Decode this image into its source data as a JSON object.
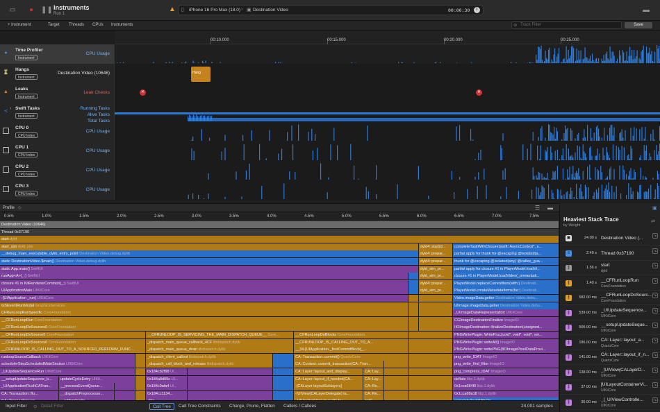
{
  "titlebar": {
    "app_title": "Instruments",
    "run_label": "Run 1",
    "device": "iPhone 16 Pro Max (18.0)",
    "target": "Destination Video",
    "time": "00:00:30",
    "sep": "›"
  },
  "toolbar": {
    "add_instrument": "+ Instrument",
    "target": "Target",
    "threads": "Threads",
    "cpus": "CPUs",
    "instruments": "Instruments",
    "track_filter_placeholder": "Track Filter",
    "save": "Save"
  },
  "ruler": [
    "00:10.000",
    "00:15.000",
    "00:20.000",
    "00:25.000"
  ],
  "tracks": [
    {
      "name": "Time Profiler",
      "badge": "Instrument",
      "sub": "CPU Usage",
      "icon": "time-profiler-icon",
      "glyph": "●",
      "color": "#4a90e2"
    },
    {
      "name": "Hangs",
      "badge": "Instrument",
      "sub": "Destination Video (10646)",
      "icon": "hangs-icon",
      "glyph": "⏳",
      "color": "#4a90e2",
      "hang_label": "Hang"
    },
    {
      "name": "Leaks",
      "badge": "Instrument",
      "sub": "Leak Checks",
      "icon": "leaks-icon",
      "glyph": "▲",
      "color": "#e08a2c"
    },
    {
      "name": "Swift Tasks",
      "badge": "Instrument",
      "sub_lines": [
        "Running Tasks",
        "Alive Tasks",
        "Total Tasks"
      ],
      "icon": "swift-tasks-icon",
      "glyph": "≺",
      "color": "#4a90e2"
    },
    {
      "name": "CPU 0",
      "badge": "CPU Index",
      "sub": "CPU Usage",
      "icon": "cpu-checkbox-icon"
    },
    {
      "name": "CPU 1",
      "badge": "CPU Index",
      "sub": "CPU Usage",
      "icon": "cpu-checkbox-icon"
    },
    {
      "name": "CPU 2",
      "badge": "CPU Index",
      "sub": "CPU Usage",
      "icon": "cpu-checkbox-icon"
    },
    {
      "name": "CPU 3",
      "badge": "CPU Index",
      "sub": "CPU Usage",
      "icon": "cpu-checkbox-icon"
    }
  ],
  "profile": {
    "title": "Profile",
    "percent_ticks": [
      "0.5%",
      "1.0%",
      "1.5%",
      "2.0%",
      "2.5%",
      "3.0%",
      "3.5%",
      "4.0%",
      "4.5%",
      "5.0%",
      "5.5%",
      "6.0%",
      "6.5%",
      "7.0%",
      "7.5%"
    ]
  },
  "flame_rows": [
    [
      {
        "t": "Destination Video (10646)",
        "lib": "",
        "w": 805,
        "c": "gray"
      }
    ],
    [
      {
        "t": "Thread  0x37190",
        "lib": "",
        "w": 805,
        "c": "dark"
      }
    ],
    [
      {
        "t": "start",
        "lib": "dyld",
        "w": 805,
        "c": "gold"
      }
    ],
    [
      {
        "t": "start_sim",
        "lib": "dyld_sim",
        "w": 603,
        "c": "gold"
      },
      {
        "t": "dyld4::start(d...",
        "lib": "",
        "w": 49,
        "c": "gold"
      },
      {
        "t": "completeTaskWithClosure(swift::AsyncContext*, s...",
        "lib": "",
        "w": 153,
        "c": "blue"
      }
    ],
    [
      {
        "t": "__debug_main_executable_dylib_entry_point",
        "lib": "Destination Video.debug.dylib",
        "w": 603,
        "c": "blue"
      },
      {
        "t": "dyld4::prepar...",
        "lib": "",
        "w": 49,
        "c": "gold"
      },
      {
        "t": "partial apply for thunk for @escaping @isolated(a...",
        "lib": "",
        "w": 153,
        "c": "blue"
      }
    ],
    [
      {
        "t": "static DestinationVideo.$main()",
        "lib": "Destination Video.debug.dylib",
        "w": 603,
        "c": "blue"
      },
      {
        "t": "dyld4::prepar...",
        "lib": "",
        "w": 49,
        "c": "gold"
      },
      {
        "t": "thunk for @escaping @isolated(any) @callee_gua...",
        "lib": "",
        "w": 153,
        "c": "blue"
      }
    ],
    [
      {
        "t": "static App.main()",
        "lib": "SwiftUI",
        "w": 603,
        "c": "purple"
      },
      {
        "t": "dyld_sim_pr...",
        "lib": "",
        "w": 49,
        "c": "gold"
      },
      {
        "t": "partial apply for closure #1 in PlayerModel.loadVi...",
        "lib": "",
        "w": 153,
        "c": "blue"
      }
    ],
    [
      {
        "t": "runApp<A>(_:)",
        "lib": "SwiftUI",
        "w": 588,
        "c": "purple"
      },
      {
        "t": "",
        "lib": "",
        "w": 15,
        "c": "blue"
      },
      {
        "t": "dyld_sim_pr...",
        "lib": "",
        "w": 49,
        "c": "gold"
      },
      {
        "t": "closure #1 in PlayerModel.loadVideo(_presentati...",
        "lib": "",
        "w": 153,
        "c": "blue"
      }
    ],
    [
      {
        "t": "closure #1 in KitRendererCommon(_:)",
        "lib": "SwiftUI",
        "w": 588,
        "c": "purple"
      },
      {
        "t": "",
        "lib": "",
        "w": 15,
        "c": "blue"
      },
      {
        "t": "dyld4::prepar...",
        "lib": "",
        "w": 49,
        "c": "gold"
      },
      {
        "t": "PlayerModel.replaceCurrentItem(with:)",
        "lib": "Destinati...",
        "w": 153,
        "c": "blue"
      }
    ],
    [
      {
        "t": "UIApplicationMain",
        "lib": "UIKitCore",
        "w": 588,
        "c": "purple"
      },
      {
        "t": "",
        "lib": "",
        "w": 15,
        "c": "blue"
      },
      {
        "t": "dyld_sim_pr...",
        "lib": "",
        "w": 49,
        "c": "gold"
      },
      {
        "t": "PlayerModel.createMetadataItems(for:)",
        "lib": "Destinati...",
        "w": 153,
        "c": "blue"
      }
    ],
    [
      {
        "t": "-[UIApplication _run]",
        "lib": "UIKitCore",
        "w": 588,
        "c": "purple"
      },
      {
        "t": "",
        "lib": "",
        "w": 15,
        "c": "gold"
      },
      {
        "t": "",
        "lib": "",
        "w": 49,
        "c": "gold"
      },
      {
        "t": "Video.imageData.getter",
        "lib": "Destination Video.debu...",
        "w": 153,
        "c": "blue"
      }
    ],
    [
      {
        "t": "GSEventRunModal",
        "lib": "GraphicsServices",
        "w": 588,
        "c": "gold"
      },
      {
        "t": "",
        "lib": "",
        "w": 15,
        "c": "gold"
      },
      {
        "t": "",
        "lib": "",
        "w": 49,
        "c": "gold"
      },
      {
        "t": "UIImage.imageData.getter",
        "lib": "Destination Video.debu...",
        "w": 153,
        "c": "blue"
      }
    ],
    [
      {
        "t": "CFRunLoopRunSpecific",
        "lib": "CoreFoundation",
        "w": 588,
        "c": "gold"
      },
      {
        "t": "",
        "lib": "",
        "w": 15,
        "c": "gold"
      },
      {
        "t": "",
        "lib": "",
        "w": 49,
        "c": "gold"
      },
      {
        "t": "_UIImageDataRepresentation",
        "lib": "UIKitCore",
        "w": 153,
        "c": "purple"
      }
    ],
    [
      {
        "t": "__CFRunLoopRun",
        "lib": "CoreFoundation",
        "w": 588,
        "c": "gold"
      },
      {
        "t": "",
        "lib": "",
        "w": 15,
        "c": "gold"
      },
      {
        "t": "",
        "lib": "",
        "w": 49,
        "c": "gold"
      },
      {
        "t": "CGImageDestinationFinalize",
        "lib": "ImageIO",
        "w": 153,
        "c": "purple"
      }
    ],
    [
      {
        "t": "__CFRunLoopDoSources0",
        "lib": "CoreFoundation",
        "w": 588,
        "c": "gold"
      },
      {
        "t": "",
        "lib": "",
        "w": 15,
        "c": "gold"
      },
      {
        "t": "",
        "lib": "",
        "w": 49,
        "c": "gold"
      },
      {
        "t": "IIOImageDestination::finalizeDestination(unsigned...",
        "lib": "",
        "w": 153,
        "c": "purple"
      }
    ],
    [
      {
        "t": "__CFRunLoopDoSource0",
        "lib": "CoreFoundation",
        "w": 210,
        "c": "gold"
      },
      {
        "t": "__CFRUNLOOP_IS_SERVICING_THE_MAIN_DISPATCH_QUEUE__",
        "lib": "Core...",
        "w": 213,
        "c": "gold"
      },
      {
        "t": "__CFRunLoopDoBlocks",
        "lib": "CoreFoundation",
        "w": 165,
        "c": "gold"
      },
      {
        "t": "",
        "lib": "",
        "w": 64,
        "c": "gold"
      },
      {
        "t": "PNGWritePlugin::WriteProc(void*, void*, void*, voi...",
        "lib": "",
        "w": 153,
        "c": "purple"
      }
    ],
    [
      {
        "t": "__CFRunLoopDoSources0",
        "lib": "CoreFoundation",
        "w": 210,
        "c": "gold"
      },
      {
        "t": "_dispatch_main_queue_callback_4CF",
        "lib": "libdispatch.dylib",
        "w": 213,
        "c": "gold"
      },
      {
        "t": "__CFRUNLOOP_IS_CALLING_OUT_TO_A...",
        "lib": "",
        "w": 165,
        "c": "gold"
      },
      {
        "t": "",
        "lib": "",
        "w": 64,
        "c": "gold"
      },
      {
        "t": "PNGWritePlugin::writeAll()",
        "lib": "ImageIO",
        "w": 153,
        "c": "purple"
      }
    ],
    [
      {
        "t": "__CFRUNLOOP_IS_CALLING_OUT_TO_A_SOURCE0_PERFORM_FUNC...",
        "lib": "",
        "w": 210,
        "c": "gold"
      },
      {
        "t": "_dispatch_main_queue_drain",
        "lib": "libdispatch.dylib",
        "w": 213,
        "c": "gold"
      },
      {
        "t": "__34-[UIApplication _firstCommitBlock]_...",
        "lib": "",
        "w": 165,
        "c": "gold"
      },
      {
        "t": "",
        "lib": "",
        "w": 64,
        "c": "gold"
      },
      {
        "t": "PNGWritePlugin::writePNG(IIOImagePixelDataProvi...",
        "lib": "",
        "w": 153,
        "c": "purple"
      }
    ],
    [
      {
        "t": "runloopSourceCallback",
        "lib": "UIKitCore",
        "w": 195,
        "c": "purple"
      },
      {
        "t": "",
        "lib": "",
        "w": 15,
        "c": "gold"
      },
      {
        "t": "_dispatch_client_callout",
        "lib": "libdispatch.dylib",
        "w": 183,
        "c": "gold"
      },
      {
        "t": "",
        "lib": "",
        "w": 30,
        "c": "blue"
      },
      {
        "t": "CA::Transaction::commit()",
        "lib": "QuartzCore",
        "w": 165,
        "c": "gold"
      },
      {
        "t": "",
        "lib": "",
        "w": 64,
        "c": "gold"
      },
      {
        "t": "png_write_IDAT",
        "lib": "ImageIO",
        "w": 153,
        "c": "purple"
      }
    ],
    [
      {
        "t": "schedulerStepScheduledMainSection",
        "lib": "UIKitCore",
        "w": 195,
        "c": "purple"
      },
      {
        "t": "",
        "lib": "",
        "w": 15,
        "c": "gold"
      },
      {
        "t": "_dispatch_call_block_and_release",
        "lib": "libdispatch.dylib",
        "w": 183,
        "c": "gold"
      },
      {
        "t": "",
        "lib": "",
        "w": 30,
        "c": "blue"
      },
      {
        "t": "CA::Context::commit_transaction(CA::Tran...",
        "lib": "",
        "w": 130,
        "c": "gold"
      },
      {
        "t": "",
        "lib": "",
        "w": 35,
        "c": "gold"
      },
      {
        "t": "",
        "lib": "",
        "w": 64,
        "c": "gold"
      },
      {
        "t": "png_write_find_filter",
        "lib": "ImageIO",
        "w": 153,
        "c": "purple"
      }
    ],
    [
      {
        "t": "_UIUpdateSequenceRun",
        "lib": "UIKitCore",
        "w": 195,
        "c": "purple"
      },
      {
        "t": "",
        "lib": "",
        "w": 15,
        "c": "gold"
      },
      {
        "t": "0x184cb2f98",
        "lib": "Ul...",
        "w": 60,
        "c": "purple"
      },
      {
        "t": "",
        "lib": "",
        "w": 123,
        "c": "purple"
      },
      {
        "t": "",
        "lib": "",
        "w": 30,
        "c": "blue"
      },
      {
        "t": "CA::Layer::layout_and_display...",
        "lib": "",
        "w": 100,
        "c": "gold"
      },
      {
        "t": "CA::Lay...",
        "lib": "",
        "w": 30,
        "c": "gold"
      },
      {
        "t": "",
        "lib": "",
        "w": 35,
        "c": "gold"
      },
      {
        "t": "",
        "lib": "",
        "w": 64,
        "c": "gold"
      },
      {
        "t": "png_compress_IDAT",
        "lib": "ImageIO",
        "w": 153,
        "c": "purple"
      }
    ],
    [
      {
        "t": "__setupUpdateSequence_b...",
        "lib": "",
        "w": 85,
        "c": "purple"
      },
      {
        "t": "updateCycleEntry",
        "lib": "UIKit...",
        "w": 110,
        "c": "purple"
      },
      {
        "t": "",
        "lib": "",
        "w": 15,
        "c": "gold"
      },
      {
        "t": "0x184a8d05c",
        "lib": "Ul...",
        "w": 60,
        "c": "purple"
      },
      {
        "t": "",
        "lib": "",
        "w": 123,
        "c": "purple"
      },
      {
        "t": "",
        "lib": "",
        "w": 30,
        "c": "blue"
      },
      {
        "t": "CA::Layer::layout_if_needed(CA...",
        "lib": "",
        "w": 100,
        "c": "gold"
      },
      {
        "t": "CA::Lay...",
        "lib": "",
        "w": 30,
        "c": "gold"
      },
      {
        "t": "",
        "lib": "",
        "w": 35,
        "c": "gold"
      },
      {
        "t": "",
        "lib": "",
        "w": 64,
        "c": "gold"
      },
      {
        "t": "deflate",
        "lib": "libz.1.dylib",
        "w": 153,
        "c": "purple"
      }
    ],
    [
      {
        "t": "_UIApplicationFlushCATran...",
        "lib": "",
        "w": 85,
        "c": "purple"
      },
      {
        "t": "__processEventQueue...",
        "lib": "",
        "w": 80,
        "c": "purple"
      },
      {
        "t": "",
        "lib": "",
        "w": 30,
        "c": "purple"
      },
      {
        "t": "",
        "lib": "",
        "w": 15,
        "c": "gold"
      },
      {
        "t": "0x184c9afa4",
        "lib": "Ul...",
        "w": 60,
        "c": "purple"
      },
      {
        "t": "",
        "lib": "",
        "w": 123,
        "c": "purple"
      },
      {
        "t": "",
        "lib": "",
        "w": 30,
        "c": "blue"
      },
      {
        "t": "-[CALayer layoutSublayers]",
        "lib": "",
        "w": 100,
        "c": "gold"
      },
      {
        "t": "CA::Re...",
        "lib": "",
        "w": 30,
        "c": "gold"
      },
      {
        "t": "",
        "lib": "",
        "w": 35,
        "c": "gold"
      },
      {
        "t": "",
        "lib": "",
        "w": 64,
        "c": "gold"
      },
      {
        "t": "0x1cca684f0",
        "lib": "libz.1.dylib",
        "w": 153,
        "c": "purple"
      }
    ],
    [
      {
        "t": "CA::Transaction::flu...",
        "lib": "",
        "w": 85,
        "c": "purple"
      },
      {
        "t": "__dispatchPreprocesse...",
        "lib": "",
        "w": 80,
        "c": "purple"
      },
      {
        "t": "",
        "lib": "",
        "w": 30,
        "c": "purple"
      },
      {
        "t": "",
        "lib": "",
        "w": 15,
        "c": "gold"
      },
      {
        "t": "0x184cc1134...",
        "lib": "",
        "w": 60,
        "c": "purple"
      },
      {
        "t": "",
        "lib": "",
        "w": 123,
        "c": "purple"
      },
      {
        "t": "",
        "lib": "",
        "w": 30,
        "c": "blue"
      },
      {
        "t": "-[UIView(CALayerDelegate) la...",
        "lib": "",
        "w": 100,
        "c": "gold"
      },
      {
        "t": "CA::Re...",
        "lib": "",
        "w": 30,
        "c": "gold"
      },
      {
        "t": "",
        "lib": "",
        "w": 35,
        "c": "gold"
      },
      {
        "t": "",
        "lib": "",
        "w": 64,
        "c": "gold"
      },
      {
        "t": "0x1cca68a18",
        "lib": "libz.1.dylib",
        "w": 153,
        "c": "purple"
      }
    ],
    [
      {
        "t": "CA::Transaction::co...",
        "lib": "",
        "w": 85,
        "c": "purple"
      },
      {
        "t": "__UIApplicatio...",
        "lib": "",
        "w": 80,
        "c": "purple"
      },
      {
        "t": "",
        "lib": "",
        "w": 30,
        "c": "purple"
      },
      {
        "t": "",
        "lib": "",
        "w": 15,
        "c": "gold"
      },
      {
        "t": "-[UI...",
        "lib": "",
        "w": 60,
        "c": "purple"
      },
      {
        "t": "",
        "lib": "",
        "w": 123,
        "c": "purple"
      },
      {
        "t": "",
        "lib": "",
        "w": 30,
        "c": "blue"
      },
      {
        "t": "_UIHostingView layoutSubv...",
        "lib": "",
        "w": 100,
        "c": "gold"
      },
      {
        "t": "caiC...",
        "lib": "",
        "w": 30,
        "c": "gold"
      },
      {
        "t": "",
        "lib": "",
        "w": 35,
        "c": "gold"
      },
      {
        "t": "",
        "lib": "",
        "w": 64,
        "c": "gold"
      },
      {
        "t": "completeTaskWithClo...",
        "lib": "",
        "w": 153,
        "c": "blue"
      }
    ]
  ],
  "bottombar": {
    "input_filter": "Input Filter",
    "detail_filter": "Detail Filter",
    "call_tree": "Call Tree",
    "call_tree_constraints": "Call Tree Constraints",
    "charge_prune_flatten": "Charge, Prune, Flatten",
    "callers_callees": "Callers / Callees",
    "samples": "24,001 samples"
  },
  "heaviest": {
    "title": "Heaviest Stack Trace",
    "subtitle": "by Weight",
    "rows": [
      {
        "time": "24.00 s",
        "name": "Destination Video (...",
        "lib": "",
        "icon": "process-icon",
        "color": "#e0e0e0"
      },
      {
        "time": "2.49 s",
        "name": "Thread  0x37190",
        "lib": "",
        "icon": "thread-icon",
        "color": "#4a90e2"
      },
      {
        "time": "1.56 s",
        "name": "start",
        "lib": "dyld",
        "icon": "frame-icon",
        "color": "#9a9a9a"
      },
      {
        "time": "1.40 s",
        "name": "__CFRunLoopRun",
        "lib": "CoreFoundation",
        "icon": "frame-icon",
        "color": "#e0a030"
      },
      {
        "time": "582.00 ms",
        "name": "__CFRunLoopDoSourc...",
        "lib": "CoreFoundation",
        "icon": "frame-icon",
        "color": "#e0a030"
      },
      {
        "time": "539.00 ms",
        "name": "_UIUpdateSequence...",
        "lib": "UIKitCore",
        "icon": "frame-icon",
        "color": "#c080e0"
      },
      {
        "time": "506.00 ms",
        "name": "__setupUpdateSeque...",
        "lib": "UIKitCore",
        "icon": "frame-icon",
        "color": "#c080e0"
      },
      {
        "time": "186.00 ms",
        "name": "CA::Layer::layout_a...",
        "lib": "QuartzCore",
        "icon": "frame-icon",
        "color": "#c080e0"
      },
      {
        "time": "141.00 ms",
        "name": "CA::Layer::layout_if_n...",
        "lib": "QuartzCore",
        "icon": "frame-icon",
        "color": "#c080e0"
      },
      {
        "time": "138.00 ms",
        "name": "_[UIView(CALayerD...",
        "lib": "UIKitCore",
        "icon": "frame-icon",
        "color": "#c080e0"
      },
      {
        "time": "37.00 ms",
        "name": "[UILayoutContainerVi...",
        "lib": "UIKitCore",
        "icon": "frame-icon",
        "color": "#c080e0"
      },
      {
        "time": "35.00 ms",
        "name": "_[_UIViewControlle...",
        "lib": "UIKitCore",
        "icon": "frame-icon",
        "color": "#c080e0"
      }
    ]
  }
}
